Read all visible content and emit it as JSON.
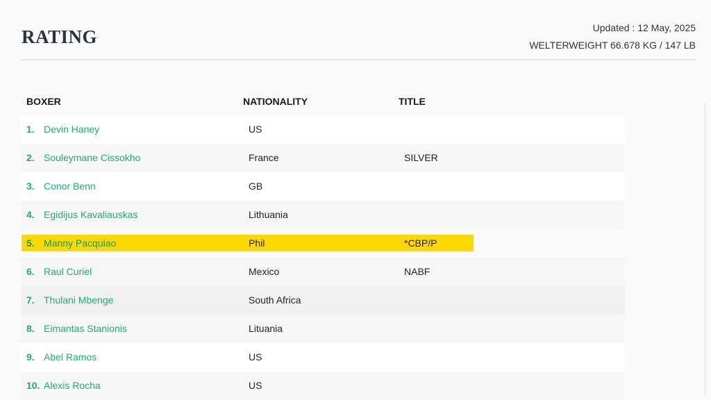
{
  "header": {
    "title": "RATING",
    "updated": "Updated : 12 May, 2025",
    "division": "WELTERWEIGHT 66.678 KG / 147 LB"
  },
  "table": {
    "columns": [
      "BOXER",
      "NATIONALITY",
      "TITLE"
    ],
    "highlight_color": "#ffd800",
    "accent_color": "#1fae72",
    "rows": [
      {
        "rank": "1.",
        "name": "Devin Haney",
        "nationality": "US",
        "title": ""
      },
      {
        "rank": "2.",
        "name": "Souleymane Cissokho",
        "nationality": "France",
        "title": "SILVER"
      },
      {
        "rank": "3.",
        "name": "Conor Benn",
        "nationality": "GB",
        "title": ""
      },
      {
        "rank": "4.",
        "name": "Egidijus Kavaliauskas",
        "nationality": "Lithuania",
        "title": ""
      },
      {
        "rank": "5.",
        "name": "Manny Pacquiao",
        "nationality": "Phil",
        "title": "*CBP/P"
      },
      {
        "rank": "6.",
        "name": "Raul Curiel",
        "nationality": "Mexico",
        "title": "NABF"
      },
      {
        "rank": "7.",
        "name": "Thulani Mbenge",
        "nationality": "South Africa",
        "title": ""
      },
      {
        "rank": "8.",
        "name": "Eimantas Stanionis",
        "nationality": "Lituania",
        "title": ""
      },
      {
        "rank": "9.",
        "name": "Abel Ramos",
        "nationality": "US",
        "title": ""
      },
      {
        "rank": "10.",
        "name": "Alexis Rocha",
        "nationality": "US",
        "title": ""
      }
    ]
  }
}
